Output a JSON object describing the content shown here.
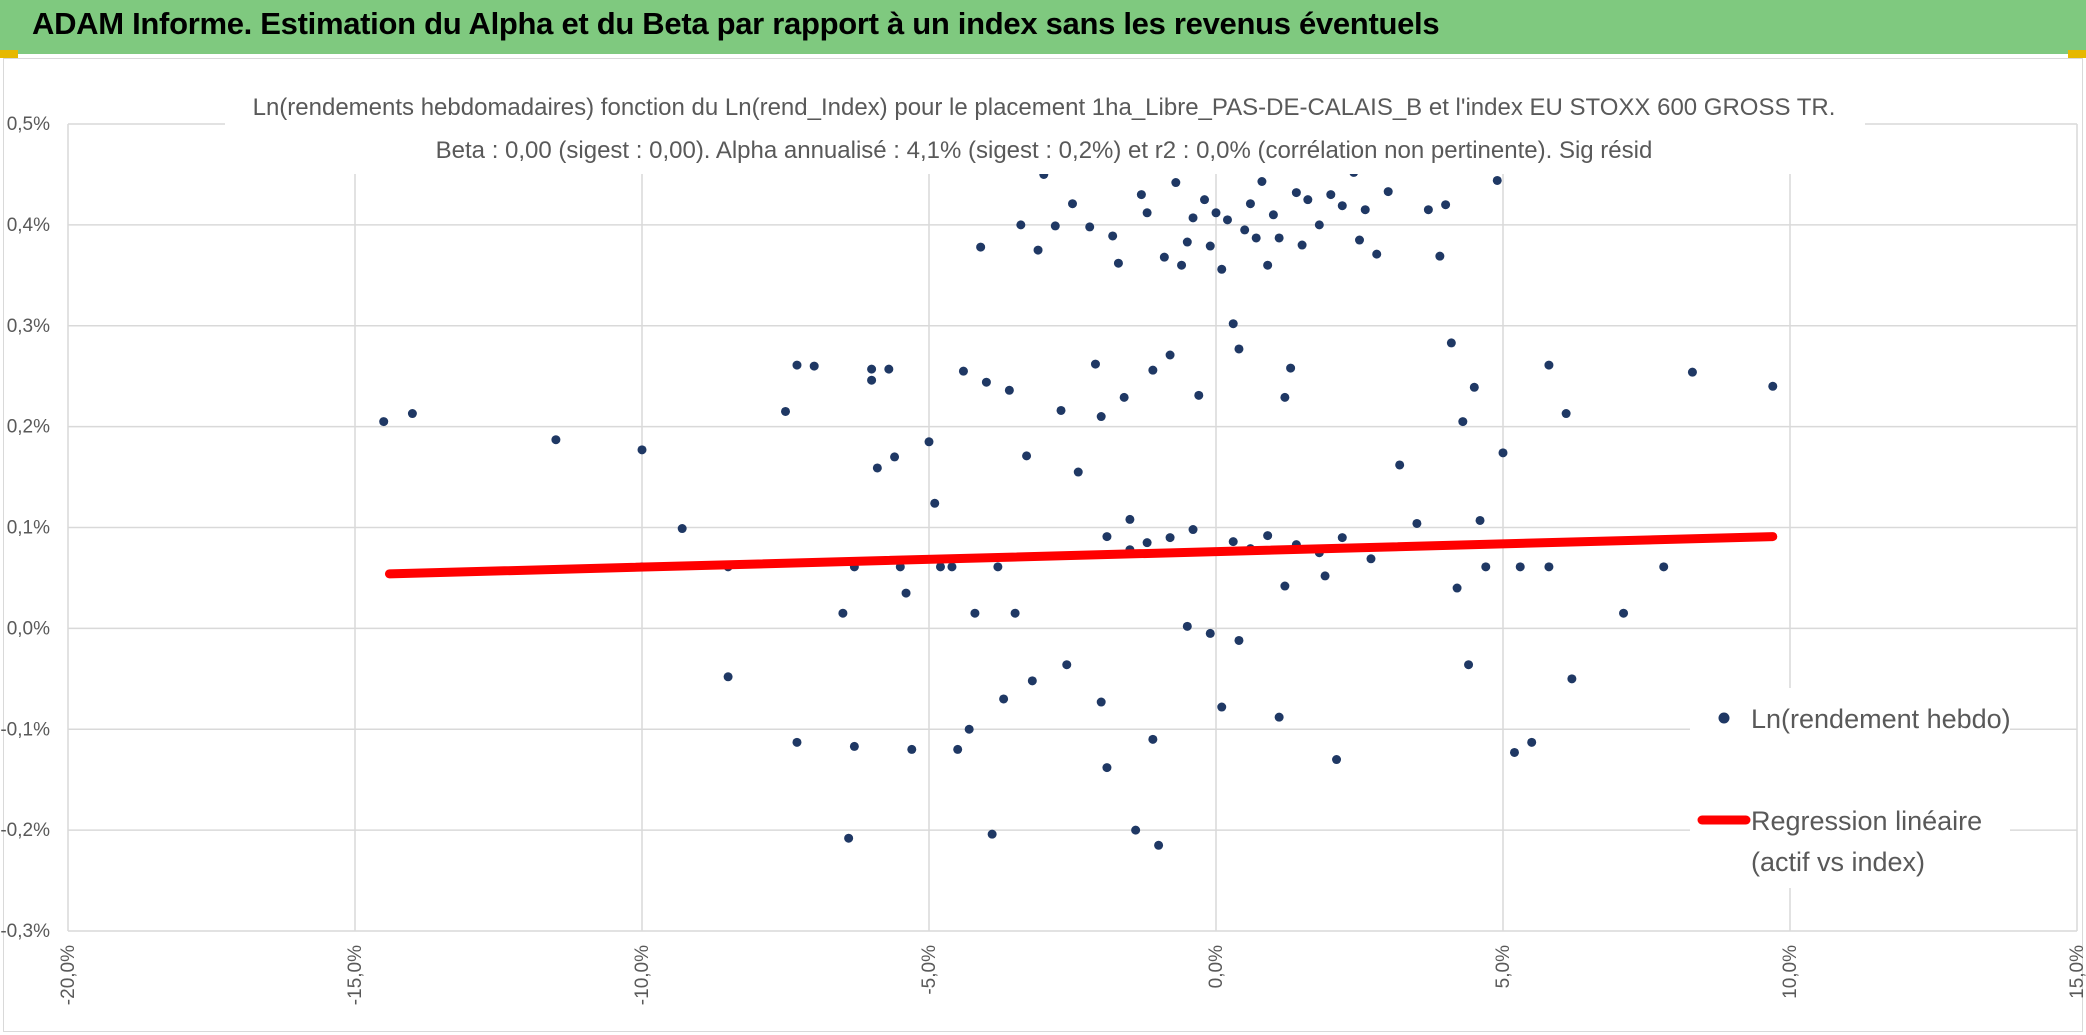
{
  "header": {
    "title": "ADAM Informe. Estimation du Alpha et du Beta par rapport à un index sans les revenus éventuels",
    "background": "#7fc97f"
  },
  "chart_data": {
    "type": "scatter",
    "title_line1": "Ln(rendements hebdomadaires) fonction du Ln(rend_Index) pour le placement 1ha_Libre_PAS-DE-CALAIS_B et l'index EU STOXX 600 GROSS TR.",
    "title_line2": "Beta : 0,00 (sigest : 0,00). Alpha annualisé : 4,1% (sigest : 0,2%) et r2 : 0,0% (corrélation non pertinente). Sig résid",
    "xlim": [
      -0.2,
      0.15
    ],
    "ylim": [
      -0.003,
      0.005
    ],
    "x_ticks": [
      {
        "value": -0.2,
        "label": "-20,0%"
      },
      {
        "value": -0.15,
        "label": "-15,0%"
      },
      {
        "value": -0.1,
        "label": "-10,0%"
      },
      {
        "value": -0.05,
        "label": "-5,0%"
      },
      {
        "value": 0.0,
        "label": "0,0%"
      },
      {
        "value": 0.05,
        "label": "5,0%"
      },
      {
        "value": 0.1,
        "label": "10,0%"
      },
      {
        "value": 0.15,
        "label": "15,0%"
      }
    ],
    "y_ticks": [
      {
        "value": 0.005,
        "label": "0,5%"
      },
      {
        "value": 0.004,
        "label": "0,4%"
      },
      {
        "value": 0.003,
        "label": "0,3%"
      },
      {
        "value": 0.002,
        "label": "0,2%"
      },
      {
        "value": 0.001,
        "label": "0,1%"
      },
      {
        "value": 0.0,
        "label": "0,0%"
      },
      {
        "value": -0.001,
        "label": "-0,1%"
      },
      {
        "value": -0.002,
        "label": "-0,2%"
      },
      {
        "value": -0.003,
        "label": "-0,3%"
      }
    ],
    "grid": true,
    "legend_position": "right",
    "series": [
      {
        "name": "Ln(rendement hebdo)",
        "kind": "points",
        "color": "#1f3864",
        "points": [
          [
            -0.145,
            0.00205
          ],
          [
            -0.14,
            0.00213
          ],
          [
            -0.115,
            0.00187
          ],
          [
            -0.1,
            0.00177
          ],
          [
            -0.1,
            0.00061
          ],
          [
            -0.093,
            0.00099
          ],
          [
            -0.085,
            0.00061
          ],
          [
            -0.085,
            -0.00048
          ],
          [
            -0.075,
            0.00215
          ],
          [
            -0.073,
            0.00261
          ],
          [
            -0.073,
            -0.00113
          ],
          [
            -0.07,
            0.0026
          ],
          [
            -0.065,
            0.00015
          ],
          [
            -0.064,
            -0.00208
          ],
          [
            -0.063,
            0.00061
          ],
          [
            -0.063,
            -0.00117
          ],
          [
            -0.06,
            0.00246
          ],
          [
            -0.06,
            0.00257
          ],
          [
            -0.059,
            0.00159
          ],
          [
            -0.057,
            0.00257
          ],
          [
            -0.056,
            0.0017
          ],
          [
            -0.055,
            0.00061
          ],
          [
            -0.054,
            0.00035
          ],
          [
            -0.053,
            -0.0012
          ],
          [
            -0.05,
            0.00185
          ],
          [
            -0.049,
            0.00124
          ],
          [
            -0.048,
            0.00061
          ],
          [
            -0.046,
            0.00061
          ],
          [
            -0.045,
            -0.0012
          ],
          [
            -0.044,
            0.00255
          ],
          [
            -0.043,
            -0.001
          ],
          [
            -0.042,
            0.00015
          ],
          [
            -0.041,
            0.00378
          ],
          [
            -0.04,
            0.00244
          ],
          [
            -0.039,
            -0.00204
          ],
          [
            -0.038,
            0.00061
          ],
          [
            -0.037,
            -0.0007
          ],
          [
            -0.036,
            0.00236
          ],
          [
            -0.035,
            0.00015
          ],
          [
            -0.034,
            0.004
          ],
          [
            -0.033,
            0.00171
          ],
          [
            -0.032,
            -0.00052
          ],
          [
            -0.031,
            0.00375
          ],
          [
            -0.03,
            0.0045
          ],
          [
            -0.028,
            0.00399
          ],
          [
            -0.027,
            0.00216
          ],
          [
            -0.026,
            -0.00036
          ],
          [
            -0.025,
            0.00421
          ],
          [
            -0.024,
            0.00155
          ],
          [
            -0.022,
            0.00398
          ],
          [
            -0.021,
            0.00262
          ],
          [
            -0.02,
            0.0021
          ],
          [
            -0.019,
            -0.00138
          ],
          [
            -0.018,
            0.00389
          ],
          [
            -0.017,
            0.00362
          ],
          [
            -0.016,
            0.00229
          ],
          [
            -0.015,
            0.00108
          ],
          [
            -0.014,
            -0.002
          ],
          [
            -0.013,
            0.0043
          ],
          [
            -0.012,
            0.00412
          ],
          [
            -0.011,
            0.00256
          ],
          [
            -0.01,
            -0.00215
          ],
          [
            -0.009,
            0.00368
          ],
          [
            -0.008,
            0.00271
          ],
          [
            -0.007,
            0.00442
          ],
          [
            -0.006,
            0.0036
          ],
          [
            -0.005,
            0.00383
          ],
          [
            -0.004,
            0.00407
          ],
          [
            -0.003,
            0.00231
          ],
          [
            -0.002,
            0.00425
          ],
          [
            -0.001,
            0.00379
          ],
          [
            0.0,
            0.00412
          ],
          [
            0.001,
            0.00356
          ],
          [
            0.002,
            0.00405
          ],
          [
            0.003,
            0.00302
          ],
          [
            0.004,
            0.00277
          ],
          [
            0.005,
            0.00395
          ],
          [
            0.006,
            0.00421
          ],
          [
            0.007,
            0.00387
          ],
          [
            0.008,
            0.00443
          ],
          [
            0.009,
            0.0036
          ],
          [
            0.01,
            0.0041
          ],
          [
            0.011,
            0.00387
          ],
          [
            0.012,
            0.00229
          ],
          [
            0.013,
            0.00258
          ],
          [
            0.014,
            0.00432
          ],
          [
            0.015,
            0.0038
          ],
          [
            0.016,
            0.00425
          ],
          [
            0.018,
            0.004
          ],
          [
            0.02,
            0.0043
          ],
          [
            0.022,
            0.00419
          ],
          [
            0.024,
            0.00452
          ],
          [
            0.025,
            0.00385
          ],
          [
            0.026,
            0.00415
          ],
          [
            0.028,
            0.00371
          ],
          [
            0.03,
            0.00433
          ],
          [
            0.032,
            0.00162
          ],
          [
            0.035,
            0.00104
          ],
          [
            0.037,
            0.00415
          ],
          [
            0.039,
            0.00369
          ],
          [
            0.04,
            0.0042
          ],
          [
            0.041,
            0.00283
          ],
          [
            0.042,
            0.0004
          ],
          [
            0.043,
            0.00205
          ],
          [
            0.044,
            -0.00036
          ],
          [
            0.045,
            0.00239
          ],
          [
            0.046,
            0.00107
          ],
          [
            0.047,
            0.00061
          ],
          [
            0.049,
            0.00444
          ],
          [
            0.05,
            0.00174
          ],
          [
            0.052,
            -0.00123
          ],
          [
            0.053,
            0.00061
          ],
          [
            0.055,
            -0.00113
          ],
          [
            0.058,
            0.00261
          ],
          [
            0.058,
            0.00061
          ],
          [
            0.061,
            0.00213
          ],
          [
            0.062,
            -0.0005
          ],
          [
            0.071,
            0.00015
          ],
          [
            0.078,
            0.00061
          ],
          [
            0.083,
            0.00254
          ],
          [
            0.097,
            0.0024
          ],
          [
            -0.019,
            0.00091
          ],
          [
            -0.015,
            0.00078
          ],
          [
            -0.012,
            0.00085
          ],
          [
            -0.008,
            0.0009
          ],
          [
            -0.004,
            0.00098
          ],
          [
            0.003,
            0.00086
          ],
          [
            0.006,
            0.00079
          ],
          [
            0.009,
            0.00092
          ],
          [
            0.014,
            0.00083
          ],
          [
            0.018,
            0.00075
          ],
          [
            0.022,
            0.0009
          ],
          [
            0.027,
            0.00069
          ],
          [
            -0.02,
            -0.00073
          ],
          [
            -0.011,
            -0.0011
          ],
          [
            0.001,
            -0.00078
          ],
          [
            0.011,
            -0.00088
          ],
          [
            0.021,
            -0.0013
          ],
          [
            -0.001,
            -5e-05
          ],
          [
            -0.005,
            2e-05
          ],
          [
            0.004,
            -0.00012
          ],
          [
            0.012,
            0.00042
          ],
          [
            0.019,
            0.00052
          ]
        ]
      },
      {
        "name": "Regression linéaire (actif vs index)",
        "name_line1": "Regression linéaire",
        "name_line2": "(actif vs index)",
        "kind": "line",
        "color": "#ff0000",
        "points": [
          [
            -0.144,
            0.00054
          ],
          [
            0.097,
            0.00091
          ]
        ]
      }
    ]
  }
}
